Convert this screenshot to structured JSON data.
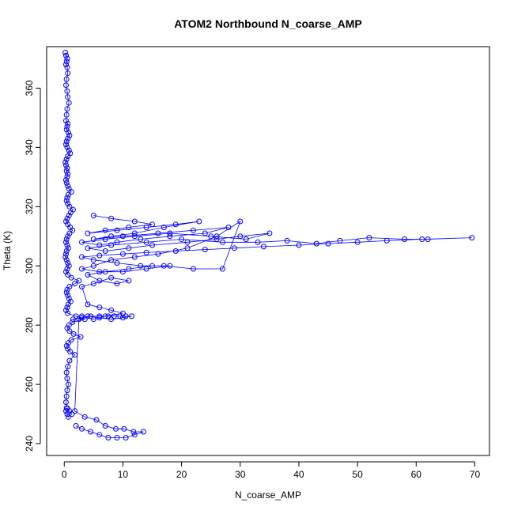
{
  "chart_data": {
    "type": "scatter",
    "title": "ATOM2 Northbound N_coarse_AMP",
    "xlabel": "N_coarse_AMP",
    "ylabel": "Theta (K)",
    "xlim": [
      -3,
      72.5
    ],
    "ylim": [
      236,
      374
    ],
    "x_ticks": [
      0,
      10,
      20,
      30,
      40,
      50,
      60,
      70
    ],
    "y_ticks": [
      240,
      260,
      280,
      300,
      320,
      340,
      360
    ],
    "grid": false,
    "legend": "none",
    "color": "#0000ff",
    "marker": "open-circle",
    "connected": true,
    "series": [
      {
        "x": [
          0.2,
          0.3,
          0.5,
          0.4,
          0.3,
          0.5,
          0.6,
          0.4,
          0.3,
          0.5,
          0.6,
          0.8,
          0.5,
          0.4,
          0.3,
          0.6,
          0.5,
          0.4,
          0.7,
          0.9,
          0.6,
          0.4,
          0.3,
          0.5,
          0.8,
          1.0,
          0.6,
          0.4,
          0.2,
          0.3,
          0.5,
          0.4,
          0.6,
          0.5,
          0.3,
          0.4,
          0.6,
          0.8,
          1.2,
          0.7,
          0.5,
          0.4,
          0.6,
          0.9,
          1.5,
          1.1,
          0.8,
          0.5,
          0.3,
          0.6,
          1.0,
          1.4,
          0.9,
          0.6,
          0.4,
          0.3,
          0.5,
          0.7,
          0.4,
          0.3,
          0.2,
          0.4,
          0.6,
          0.8,
          0.5,
          0.3,
          0.6,
          1.2,
          2.5,
          1.8,
          0.9,
          0.5,
          0.4,
          0.6,
          0.8,
          1.1,
          0.7,
          0.5,
          0.3,
          0.6,
          2.0,
          3.5,
          1.4,
          0.8,
          0.5,
          0.9,
          1.6,
          2.8,
          1.2,
          0.7,
          0.4,
          0.6,
          1.0,
          1.8,
          0.9,
          0.6,
          0.4,
          0.5,
          0.7,
          0.5,
          0.4,
          0.3,
          0.5,
          0.9,
          1.3,
          0.7,
          0.5,
          0.3,
          0.4
        ],
        "y": [
          372,
          371,
          370,
          369,
          368,
          367,
          365,
          363,
          361,
          359,
          357,
          355,
          353,
          351,
          349,
          348,
          347,
          346,
          345,
          344,
          343,
          342,
          341,
          340,
          339,
          338,
          337,
          336,
          335,
          334,
          333,
          332,
          331,
          330,
          329,
          328,
          327,
          326,
          325,
          324,
          323,
          322,
          321,
          320,
          319,
          318,
          317,
          316,
          315,
          314,
          313,
          312,
          311,
          310,
          309,
          308,
          307,
          306,
          305,
          304,
          303,
          302,
          301,
          300,
          299,
          298,
          297,
          296,
          295,
          294,
          293,
          292,
          291,
          290,
          289,
          288,
          287,
          286,
          285,
          284,
          283,
          282,
          281,
          280,
          279,
          278,
          277,
          276,
          275,
          274,
          273,
          272,
          271,
          270,
          268,
          266,
          264,
          262,
          260,
          258,
          256,
          254,
          252,
          251,
          250,
          249,
          250,
          251,
          252
        ]
      },
      {
        "x": [
          5,
          8,
          12,
          15,
          11,
          7,
          4,
          9,
          14,
          19,
          23,
          17,
          12,
          8,
          5,
          10,
          16,
          22,
          28,
          24,
          18,
          13,
          9,
          6,
          3,
          7,
          12,
          18,
          25,
          31,
          35,
          30,
          26,
          21,
          15,
          11,
          7,
          4,
          8,
          14,
          20,
          27,
          33,
          38,
          43,
          47,
          52,
          58,
          62,
          69.5,
          61,
          55,
          50,
          45,
          40,
          34,
          29,
          24,
          19,
          14,
          10,
          6,
          3,
          5,
          9,
          13,
          17,
          22,
          27,
          30,
          26,
          21,
          16,
          12,
          8,
          5,
          3,
          6,
          10,
          14,
          18,
          15,
          11,
          7,
          4,
          6,
          9,
          11,
          8,
          5,
          3,
          4,
          6,
          8,
          10,
          7,
          5,
          3
        ],
        "y": [
          317,
          316,
          315,
          314,
          313,
          312,
          311,
          312,
          313,
          314,
          315,
          313,
          311,
          310,
          309,
          310,
          311,
          312,
          313,
          311,
          310,
          309,
          308,
          307,
          308,
          309,
          310,
          311,
          310,
          309,
          311,
          310,
          309,
          308,
          307,
          306,
          305,
          306,
          307,
          308,
          309,
          308,
          308,
          308.5,
          307.5,
          308.5,
          309.5,
          309,
          309,
          309.5,
          309,
          308.5,
          308,
          307.5,
          307,
          306.5,
          306,
          305.5,
          305,
          304.5,
          304,
          303.5,
          303,
          302,
          301,
          300,
          300,
          299,
          299,
          315,
          310,
          306,
          304,
          303,
          302,
          300,
          299,
          298,
          298,
          299,
          300,
          300,
          299,
          298,
          297,
          295,
          294,
          295,
          296,
          294,
          293,
          287,
          286,
          285,
          284,
          283,
          282,
          283
        ]
      },
      {
        "x": [
          1.5,
          3.0,
          4.5,
          6.0,
          7.5,
          8.5,
          9.5,
          10.5,
          11.5,
          10.0,
          8.0,
          6.0,
          4.0,
          2.5,
          1.8,
          3.5,
          5.5,
          7.0,
          8.8,
          10.2,
          11.8,
          13.5,
          12.0,
          10.5,
          9.0,
          7.5,
          6.0,
          4.5,
          3.0,
          2.0
        ],
        "y": [
          282,
          282.5,
          283,
          283,
          283,
          283,
          283,
          283,
          283,
          282.5,
          282,
          282.5,
          283,
          282,
          251,
          249,
          248,
          246,
          245,
          245,
          244,
          244,
          243,
          242,
          242,
          242,
          243,
          244,
          245,
          246
        ]
      }
    ]
  }
}
